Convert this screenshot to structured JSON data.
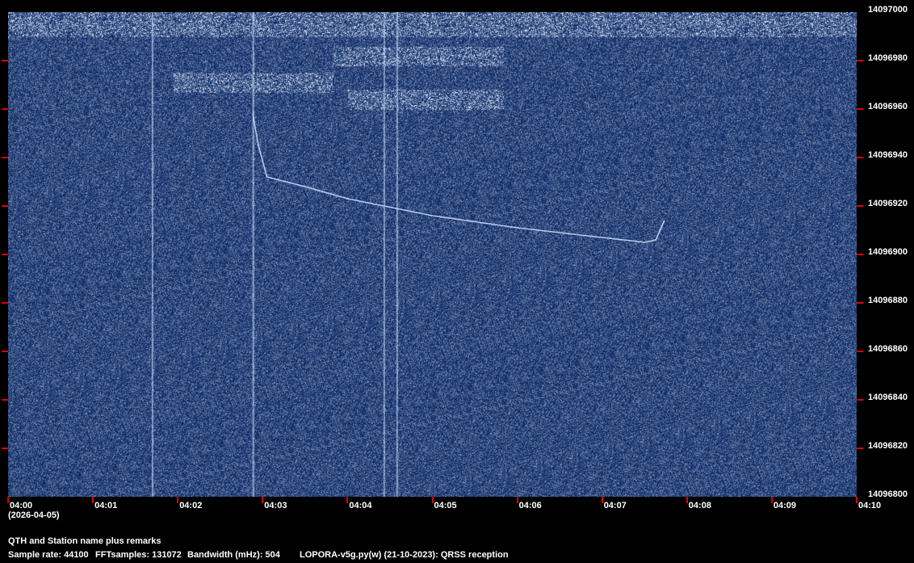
{
  "chart_data": {
    "type": "heatmap",
    "subtype": "spectrogram",
    "xlabel": "",
    "ylabel": "",
    "x_ticks": [
      "04:00",
      "04:01",
      "04:02",
      "04:03",
      "04:04",
      "04:05",
      "04:06",
      "04:07",
      "04:08",
      "04:09",
      "04:10"
    ],
    "date_label": "(2026-04-05)",
    "y_ticks": [
      14097000,
      14096980,
      14096960,
      14096940,
      14096920,
      14096900,
      14096880,
      14096860,
      14096840,
      14096820,
      14096800
    ],
    "xlim": [
      "04:00",
      "04:10"
    ],
    "ylim": [
      14096800,
      14097000
    ],
    "colors": {
      "background": "#0b2e6e",
      "signal": "#cfe2ff",
      "tick": "#e00000"
    },
    "signal_trace": [
      {
        "t": "04:02:53",
        "f": 14096958
      },
      {
        "t": "04:02:57",
        "f": 14096945
      },
      {
        "t": "04:03:03",
        "f": 14096932
      },
      {
        "t": "04:03:30",
        "f": 14096928
      },
      {
        "t": "04:04:00",
        "f": 14096923
      },
      {
        "t": "04:05:00",
        "f": 14096916
      },
      {
        "t": "04:06:00",
        "f": 14096911
      },
      {
        "t": "04:07:00",
        "f": 14096907
      },
      {
        "t": "04:07:30",
        "f": 14096905
      },
      {
        "t": "04:07:38",
        "f": 14096906
      },
      {
        "t": "04:07:44",
        "f": 14096914
      }
    ],
    "vertical_lines": [
      "04:01:42",
      "04:02:53",
      "04:04:26",
      "04:04:35"
    ],
    "noise_bands": [
      {
        "t0": "04:00:00",
        "t1": "04:10:00",
        "f0": 14096990,
        "f1": 14097000
      },
      {
        "t0": "04:03:50",
        "t1": "04:05:50",
        "f0": 14096978,
        "f1": 14096986
      },
      {
        "t0": "04:01:57",
        "t1": "04:03:50",
        "f0": 14096967,
        "f1": 14096975
      },
      {
        "t0": "04:04:00",
        "t1": "04:05:50",
        "f0": 14096960,
        "f1": 14096968
      }
    ]
  },
  "footer": {
    "remarks": "QTH and Station name plus remarks",
    "sample_rate": "Sample rate: 44100",
    "fft_samples": "FFTsamples: 131072",
    "bandwidth": "Bandwidth (mHz): 504",
    "software": "LOPORA-v5g.py(w) (21-10-2023): QRSS reception"
  }
}
